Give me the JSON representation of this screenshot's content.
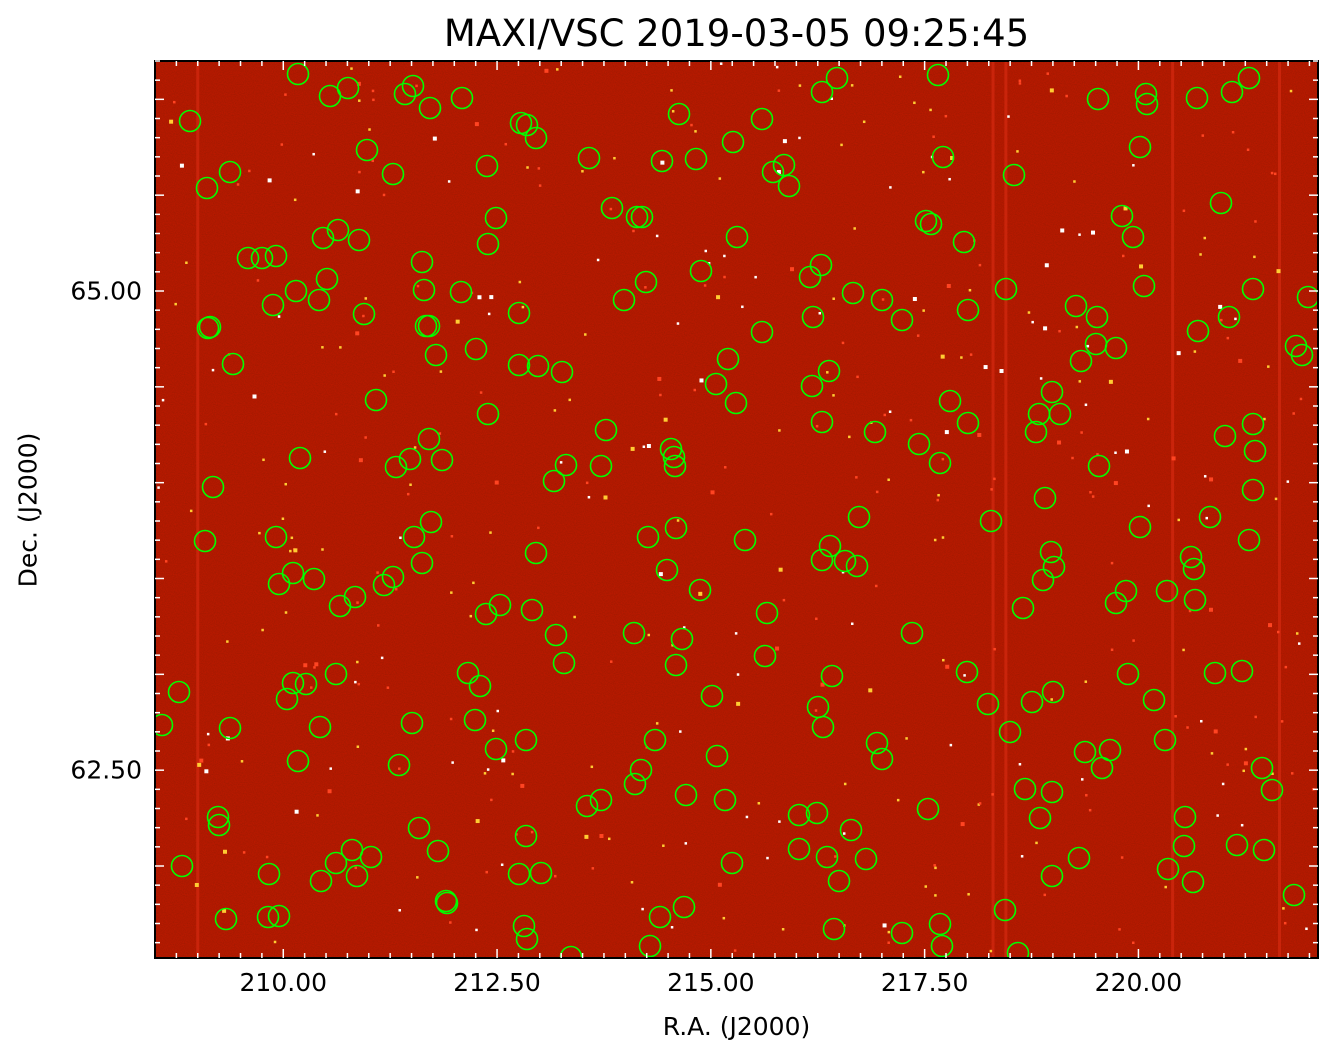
{
  "title": "MAXI/VSC 2019-03-05 09:25:45",
  "axes": {
    "xlabel": "R.A. (J2000)",
    "ylabel": "Dec. (J2000)",
    "xlim": [
      208.5,
      222.1
    ],
    "ylim": [
      61.52,
      66.2
    ],
    "xticks": [
      "210.00",
      "212.50",
      "215.00",
      "217.50",
      "220.00"
    ],
    "yticks": [
      "65.00",
      "62.50"
    ]
  },
  "colors": {
    "background_field": "#8e0a00",
    "marker": "#00ff00",
    "streak": "#d42a10",
    "hot_pixel": "#ffffff"
  },
  "image": {
    "description": "VSC sky image with dark-red noise background and green source circles",
    "streaks_ra": [
      209.0,
      218.3,
      218.45,
      220.4,
      221.65
    ]
  },
  "markers": {
    "shape": "circle",
    "count_estimate": 240
  }
}
